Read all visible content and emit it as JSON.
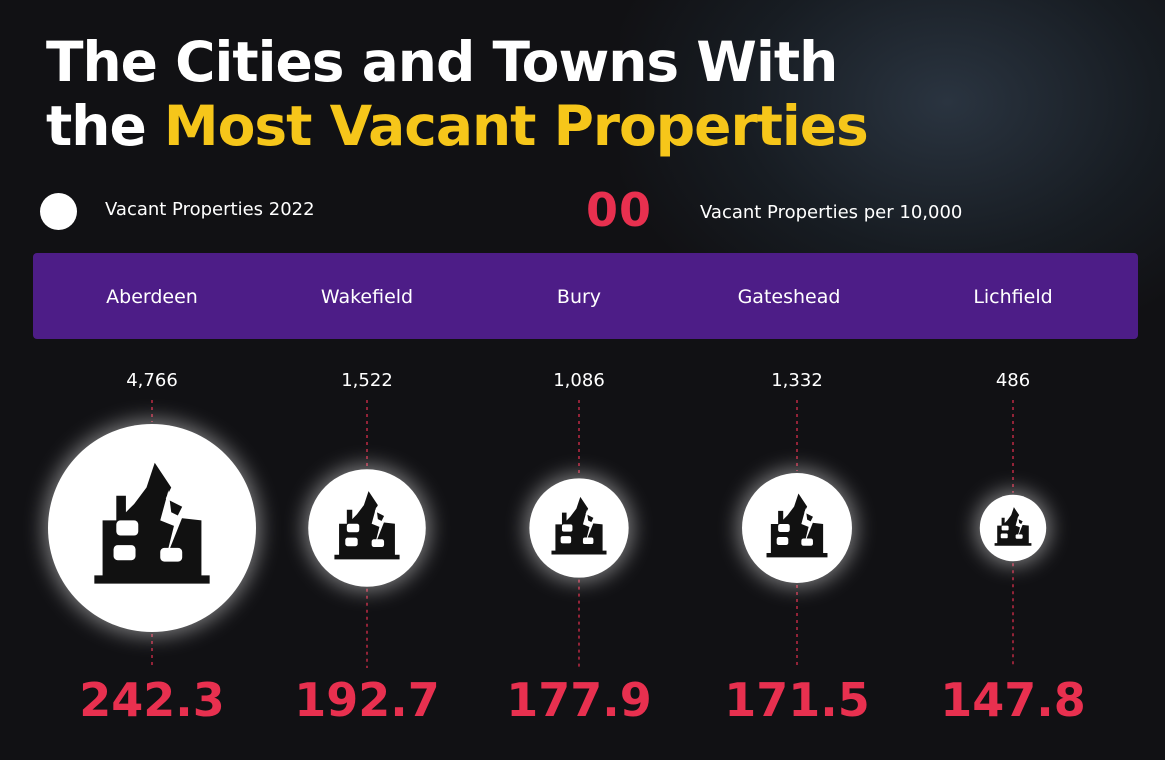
{
  "title": {
    "line1": "The Cities and Towns With",
    "line2_prefix": "the ",
    "line2_highlight": "Most Vacant Properties"
  },
  "legend": {
    "bubble_label": "Vacant Properties 2022",
    "rate_sample": "00",
    "rate_label": "Vacant Properties per 10,000"
  },
  "colors": {
    "band": "#4d1d87",
    "highlight": "#f6c61a",
    "rate": "#e8304f",
    "bubble": "#ffffff"
  },
  "icon": "haunted-house-icon",
  "chart_data": {
    "type": "bubble",
    "categories": [
      "Aberdeen",
      "Wakefield",
      "Bury",
      "Gateshead",
      "Lichfield"
    ],
    "series": [
      {
        "name": "Vacant Properties 2022",
        "values": [
          4766,
          1522,
          1086,
          1332,
          486
        ],
        "labels": [
          "4,766",
          "1,522",
          "1,086",
          "1,332",
          "486"
        ]
      },
      {
        "name": "Vacant Properties per 10,000",
        "values": [
          242.3,
          192.7,
          177.9,
          171.5,
          147.8
        ],
        "labels": [
          "242.3",
          "192.7",
          "177.9",
          "171.5",
          "147.8"
        ]
      }
    ]
  }
}
